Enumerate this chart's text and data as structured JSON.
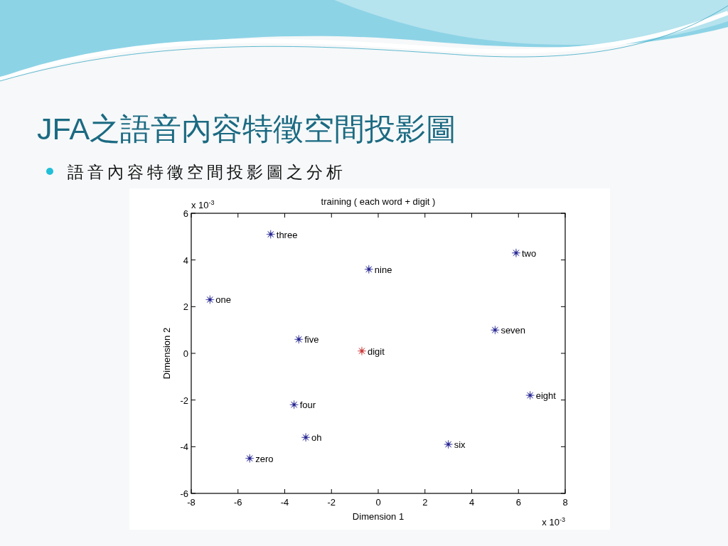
{
  "chart_data": {
    "type": "scatter",
    "title": "JFA之語音內容特徵空間投影圖",
    "subtitle": "語音內容特徵空間投影圖之分析",
    "annotations": [
      "training ( each word + digit )",
      "x 10$^{-3}$",
      "x 10$^{-3}$"
    ],
    "xlabel": "Dimension 1",
    "ylabel": "Dimension 2",
    "xlim": [
      -8,
      8
    ],
    "ylim": [
      -6,
      6
    ],
    "xticks": [
      -8,
      -6,
      -4,
      -2,
      0,
      2,
      4,
      6,
      8
    ],
    "yticks": [
      -6,
      -4,
      -2,
      0,
      2,
      4,
      6
    ],
    "marker": "star",
    "series": [
      {
        "name": "three",
        "color": "#202090",
        "x": [
          -4.6
        ],
        "values": [
          5.1
        ]
      },
      {
        "name": "two",
        "color": "#202090",
        "x": [
          5.9
        ],
        "values": [
          4.3
        ]
      },
      {
        "name": "nine",
        "color": "#202090",
        "x": [
          -0.4
        ],
        "values": [
          3.6
        ]
      },
      {
        "name": "one",
        "color": "#202090",
        "x": [
          -7.2
        ],
        "values": [
          2.3
        ]
      },
      {
        "name": "seven",
        "color": "#202090",
        "x": [
          5.0
        ],
        "values": [
          1.0
        ]
      },
      {
        "name": "five",
        "color": "#202090",
        "x": [
          -3.4
        ],
        "values": [
          0.6
        ]
      },
      {
        "name": "digit",
        "color": "#c83232",
        "x": [
          -0.7
        ],
        "values": [
          0.1
        ]
      },
      {
        "name": "eight",
        "color": "#202090",
        "x": [
          6.5
        ],
        "values": [
          -1.8
        ]
      },
      {
        "name": "four",
        "color": "#202090",
        "x": [
          -3.6
        ],
        "values": [
          -2.2
        ]
      },
      {
        "name": "oh",
        "color": "#202090",
        "x": [
          -3.1
        ],
        "values": [
          -3.6
        ]
      },
      {
        "name": "six",
        "color": "#202090",
        "x": [
          3.0
        ],
        "values": [
          -3.9
        ]
      },
      {
        "name": "zero",
        "color": "#202090",
        "x": [
          -5.5
        ],
        "values": [
          -4.5
        ]
      }
    ]
  }
}
